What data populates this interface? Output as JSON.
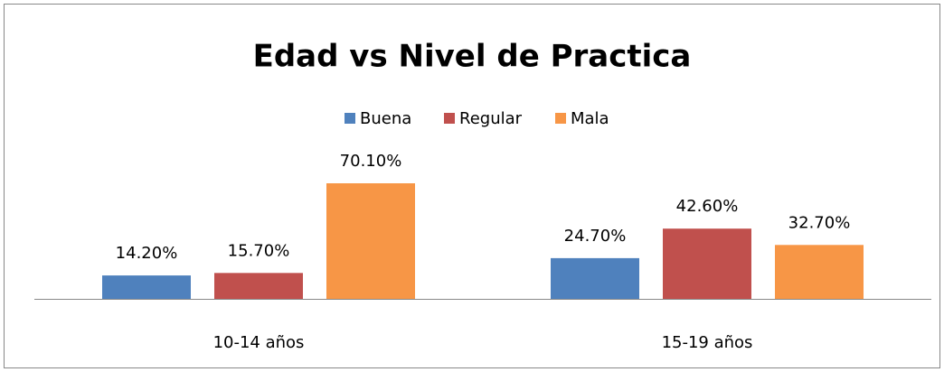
{
  "chart_data": {
    "type": "bar",
    "title": "Edad vs Nivel de Practica",
    "categories": [
      "10-14 años",
      "15-19 años"
    ],
    "series": [
      {
        "name": "Buena",
        "color": "#4f81bd",
        "values": [
          14.2,
          24.7
        ],
        "value_labels": [
          "14.20%",
          "24.70%"
        ]
      },
      {
        "name": "Regular",
        "color": "#c0504d",
        "values": [
          15.7,
          42.6
        ],
        "value_labels": [
          "15.70%",
          "42.60%"
        ]
      },
      {
        "name": "Mala",
        "color": "#f79646",
        "values": [
          70.1,
          32.7
        ],
        "value_labels": [
          "70.10%",
          "32.70%"
        ]
      }
    ],
    "legend": "top"
  }
}
